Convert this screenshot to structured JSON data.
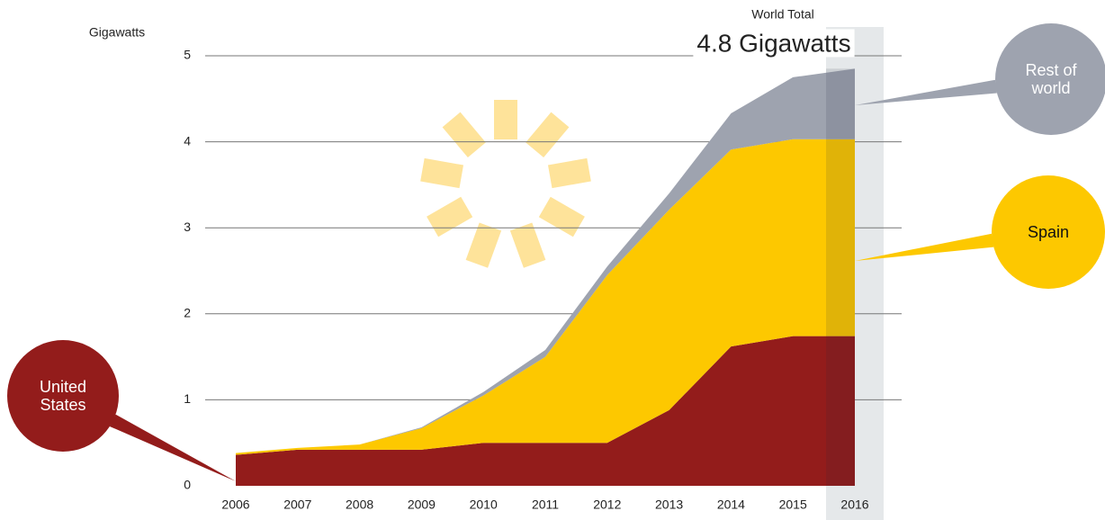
{
  "chart_data": {
    "type": "area",
    "y_label": "Gigawatts",
    "annotation_title": "World Total",
    "annotation": "4.8 Gigawatts",
    "categories": [
      "2006",
      "2007",
      "2008",
      "2009",
      "2010",
      "2011",
      "2012",
      "2013",
      "2014",
      "2015",
      "2016"
    ],
    "highlight": "2016",
    "series": [
      {
        "name": "United States",
        "color": "#931c1b",
        "values": [
          0.36,
          0.42,
          0.42,
          0.42,
          0.5,
          0.5,
          0.5,
          0.88,
          1.62,
          1.74,
          1.74
        ]
      },
      {
        "name": "Spain",
        "color": "#fdc800",
        "values": [
          0.02,
          0.02,
          0.06,
          0.25,
          0.55,
          1.0,
          1.95,
          2.33,
          2.29,
          2.29,
          2.29
        ]
      },
      {
        "name": "Rest of world",
        "color": "#9ea3af",
        "values": [
          0,
          0,
          0,
          0.01,
          0.04,
          0.08,
          0.1,
          0.19,
          0.42,
          0.72,
          0.82
        ]
      }
    ],
    "ylim": [
      0,
      5
    ],
    "yticks": [
      0,
      1,
      2,
      3,
      4,
      5
    ],
    "grid": true
  }
}
